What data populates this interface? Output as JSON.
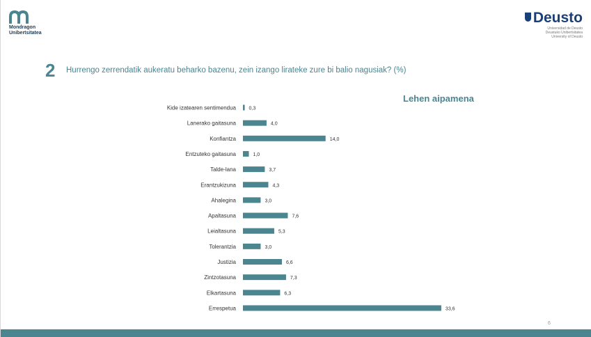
{
  "header": {
    "left_logo": {
      "icon": "mondragon-logo-icon",
      "line1": "Mondragon",
      "line2": "Unibertsitatea",
      "color": "#1f3a54"
    },
    "right_logo": {
      "icon": "deusto-shield-icon",
      "name": "Deusto",
      "sub1": "Universidad de Deusto",
      "sub2": "Deustuko Unibertsitatea",
      "sub3": "University of Deusto",
      "color": "#1b3f78"
    }
  },
  "question": {
    "number": "2",
    "text": "Hurrengo zerrendatik aukeratu beharko bazenu, zein izango lirateke zure bi balio nagusiak? (%)"
  },
  "chart_data": {
    "type": "bar",
    "orientation": "horizontal",
    "title": "Lehen aipamena",
    "categories": [
      "Kide izatearen sentimendua",
      "Lanerako gaitasuna",
      "Konfiantza",
      "Entzuteko gaitasuna",
      "Talde-lana",
      "Erantzukizuna",
      "Ahalegina",
      "Apaltasuna",
      "Leialtasuna",
      "Tolerantzia",
      "Justizia",
      "Zintzotasuna",
      "Elkartasuna",
      "Errespetua"
    ],
    "values": [
      0.3,
      4.0,
      14.0,
      1.0,
      3.7,
      4.3,
      3.0,
      7.6,
      5.3,
      3.0,
      6.6,
      7.3,
      6.3,
      33.6
    ],
    "labels": [
      "0,3",
      "4,0",
      "14,0",
      "1,0",
      "3,7",
      "4,3",
      "3,0",
      "7,6",
      "5,3",
      "3,0",
      "6,6",
      "7,3",
      "6,3",
      "33,6"
    ],
    "xlim": [
      0,
      34
    ],
    "grid": false,
    "legend": "none",
    "bar_color": "#4a8590"
  },
  "footer": {
    "page_number": "6",
    "bar_color": "#4a8590"
  }
}
